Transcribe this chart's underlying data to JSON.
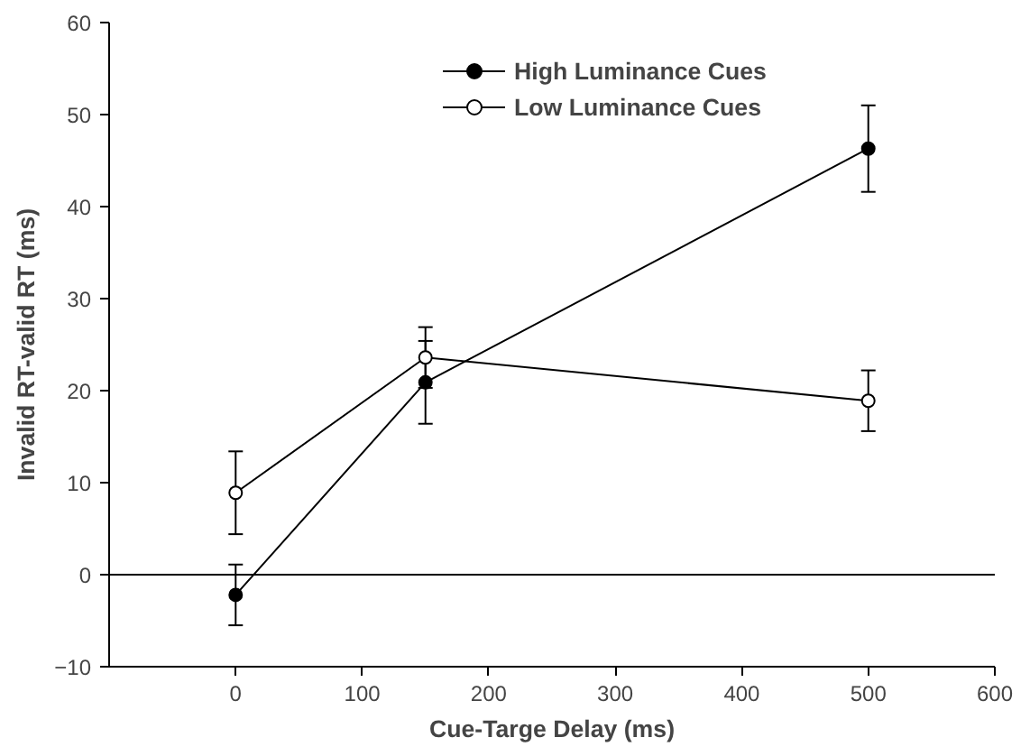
{
  "chart_data": {
    "type": "line",
    "xlabel": "Cue-Targe Delay (ms)",
    "ylabel": "Invalid RT-valid RT (ms)",
    "x": [
      0,
      150,
      500
    ],
    "series": [
      {
        "name": "High Luminance Cues",
        "color": "#000000",
        "values": [
          -2.2,
          20.9,
          46.3
        ],
        "errors": [
          3.3,
          4.5,
          4.7
        ]
      },
      {
        "name": "Low Luminance Cues",
        "color": "#000000",
        "values": [
          8.9,
          23.6,
          18.9
        ],
        "errors": [
          4.5,
          3.3,
          3.3
        ]
      }
    ],
    "xlim": [
      -100,
      600
    ],
    "xticks": [
      0,
      100,
      200,
      300,
      400,
      500,
      600
    ],
    "ylim": [
      -10,
      60
    ],
    "yticks": [
      -10,
      0,
      10,
      20,
      30,
      40,
      50,
      60
    ],
    "ref_lines": [
      {
        "axis": "y",
        "value": 0,
        "label": null,
        "color": "#000000"
      }
    ],
    "grid": false,
    "legend": "top right",
    "marker": "circle",
    "line_style": "solid"
  }
}
